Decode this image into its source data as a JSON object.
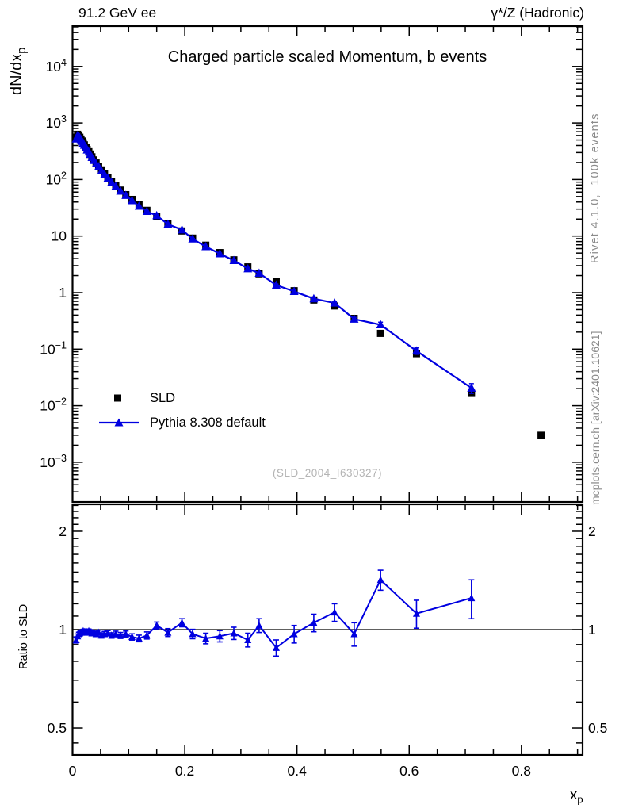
{
  "header": {
    "left": "91.2 GeV ee",
    "right": "γ*/Z (Hadronic)"
  },
  "panel": {
    "title": "Charged particle scaled Momentum, b events",
    "watermark": "(SLD_2004_I630327)"
  },
  "axes": {
    "ylabel_main": "dN/dx",
    "ylabel_main_sub": "p",
    "ylabel_ratio": "Ratio to SLD",
    "xlabel": "x",
    "xlabel_sub": "p"
  },
  "sidebar": {
    "rivet": "Rivet 4.1.0,  100k events",
    "mcplots": "mcplots.cern.ch [arXiv:2401.10621]"
  },
  "legend": {
    "items": [
      {
        "label": "SLD",
        "marker": "square"
      },
      {
        "label": "Pythia 8.308 default",
        "marker": "triangle-line"
      }
    ]
  },
  "colors": {
    "data": "#000000",
    "mc": "#0000e0",
    "frame": "#000000",
    "gray_text": "#8a8a8a",
    "watermark": "#b4b4b4"
  },
  "chart_data": {
    "type": "line",
    "title": "Charged particle scaled Momentum, b events",
    "xlabel": "x_p",
    "ylabel": "dN/dx_p",
    "ylabel_ratio": "Ratio to SLD",
    "legend_position": "middle-left",
    "grid": false,
    "x_axis": {
      "min": 0,
      "max": 0.909,
      "major_ticks": [
        0,
        0.2,
        0.4,
        0.6,
        0.8
      ],
      "minor_step": 0.05
    },
    "y_main": {
      "scale": "log",
      "min": 0.000192,
      "max": 51600,
      "label_exponents": [
        -3,
        -2,
        -1,
        0,
        1,
        2,
        3,
        4
      ]
    },
    "y_ratio": {
      "scale": "log",
      "min": 0.413,
      "max": 2.44,
      "major_ticks": [
        0.5,
        1,
        2
      ],
      "minor_step": 0.1,
      "ref_line": 1
    },
    "series": [
      {
        "name": "SLD",
        "marker": "square",
        "line": false,
        "color": "#000000",
        "x": [
          0.0065,
          0.009,
          0.011,
          0.013,
          0.015,
          0.017,
          0.019,
          0.021,
          0.024,
          0.026,
          0.029,
          0.0315,
          0.0345,
          0.038,
          0.042,
          0.0465,
          0.0515,
          0.057,
          0.063,
          0.0695,
          0.077,
          0.0855,
          0.095,
          0.106,
          0.1185,
          0.1325,
          0.15,
          0.17,
          0.195,
          0.214,
          0.2375,
          0.2625,
          0.2875,
          0.3125,
          0.3325,
          0.363,
          0.395,
          0.43,
          0.467,
          0.502,
          0.549,
          0.613,
          0.711,
          0.835
        ],
        "y": [
          560,
          630,
          600,
          560,
          520,
          480,
          445,
          410,
          372,
          340,
          310,
          282,
          252,
          222,
          196,
          172,
          148,
          127,
          109,
          93,
          78,
          65,
          54,
          44.5,
          36,
          28.5,
          22.3,
          16.5,
          12.3,
          9.2,
          6.9,
          5.1,
          3.8,
          2.85,
          2.15,
          1.55,
          1.08,
          0.74,
          0.58,
          0.35,
          0.19,
          0.083,
          0.0165,
          0.003
        ],
        "yerr": [
          8,
          8,
          7,
          7,
          6,
          6,
          5,
          5,
          5,
          4,
          4,
          3.5,
          3,
          2.8,
          2.5,
          2.2,
          1.9,
          1.6,
          1.4,
          1.2,
          1,
          0.85,
          0.7,
          0.6,
          0.5,
          0.4,
          0.32,
          0.25,
          0.2,
          0.16,
          0.13,
          0.1,
          0.085,
          0.07,
          0.06,
          0.045,
          0.035,
          0.028,
          0.022,
          0.016,
          0.01,
          0.005,
          0.0012,
          0.0003
        ]
      },
      {
        "name": "Pythia 8.308 default",
        "marker": "triangle",
        "line": true,
        "color": "#0000e0",
        "x": [
          0.0065,
          0.009,
          0.011,
          0.013,
          0.015,
          0.017,
          0.019,
          0.021,
          0.024,
          0.026,
          0.029,
          0.0315,
          0.0345,
          0.038,
          0.042,
          0.0465,
          0.0515,
          0.057,
          0.063,
          0.0695,
          0.077,
          0.0855,
          0.095,
          0.106,
          0.1185,
          0.1325,
          0.15,
          0.17,
          0.195,
          0.214,
          0.2375,
          0.2625,
          0.2875,
          0.3125,
          0.3325,
          0.363,
          0.395,
          0.43,
          0.467,
          0.502,
          0.549,
          0.613,
          0.711
        ],
        "y": [
          521,
          602,
          582,
          546,
          510,
          473,
          441,
          404,
          368,
          333,
          307,
          278,
          246,
          218,
          190,
          169,
          142,
          123,
          106,
          89,
          76,
          62.4,
          52.4,
          42.3,
          33.8,
          27.4,
          23,
          16.2,
          12.9,
          8.9,
          6.5,
          4.87,
          3.7,
          2.65,
          2.21,
          1.36,
          1.05,
          0.78,
          0.655,
          0.34,
          0.27,
          0.093,
          0.0205
        ],
        "yerr": [
          10,
          10,
          9,
          8,
          8,
          7,
          7,
          6,
          6,
          5,
          5,
          4,
          4,
          3.5,
          3,
          2.7,
          2.3,
          2,
          1.7,
          1.4,
          1.2,
          1,
          0.8,
          0.7,
          0.55,
          0.45,
          0.38,
          0.3,
          0.25,
          0.2,
          0.16,
          0.13,
          0.11,
          0.09,
          0.08,
          0.06,
          0.05,
          0.04,
          0.035,
          0.025,
          0.03,
          0.012,
          0.004
        ]
      }
    ],
    "ratio": {
      "numerator": "Pythia 8.308 default",
      "denominator": "SLD",
      "color": "#0000e0",
      "x": [
        0.0065,
        0.009,
        0.011,
        0.013,
        0.015,
        0.017,
        0.019,
        0.021,
        0.024,
        0.026,
        0.029,
        0.0315,
        0.0345,
        0.038,
        0.042,
        0.0465,
        0.0515,
        0.057,
        0.063,
        0.0695,
        0.077,
        0.0855,
        0.095,
        0.106,
        0.1185,
        0.1325,
        0.15,
        0.17,
        0.195,
        0.214,
        0.2375,
        0.2625,
        0.2875,
        0.3125,
        0.3325,
        0.363,
        0.395,
        0.43,
        0.467,
        0.502,
        0.549,
        0.613,
        0.711
      ],
      "y": [
        0.93,
        0.955,
        0.97,
        0.975,
        0.98,
        0.985,
        0.99,
        0.985,
        0.99,
        0.98,
        0.99,
        0.985,
        0.975,
        0.98,
        0.97,
        0.98,
        0.96,
        0.97,
        0.975,
        0.96,
        0.97,
        0.96,
        0.97,
        0.95,
        0.94,
        0.96,
        1.03,
        0.98,
        1.05,
        0.97,
        0.94,
        0.955,
        0.975,
        0.93,
        1.03,
        0.88,
        0.97,
        1.05,
        1.13,
        0.97,
        1.42,
        1.12,
        1.25
      ],
      "yerr": [
        0.02,
        0.015,
        0.012,
        0.012,
        0.012,
        0.012,
        0.012,
        0.012,
        0.013,
        0.013,
        0.014,
        0.014,
        0.015,
        0.015,
        0.016,
        0.016,
        0.017,
        0.017,
        0.018,
        0.018,
        0.019,
        0.02,
        0.02,
        0.021,
        0.022,
        0.024,
        0.025,
        0.027,
        0.03,
        0.032,
        0.035,
        0.038,
        0.042,
        0.045,
        0.05,
        0.05,
        0.06,
        0.065,
        0.07,
        0.08,
        0.1,
        0.11,
        0.17
      ]
    }
  }
}
